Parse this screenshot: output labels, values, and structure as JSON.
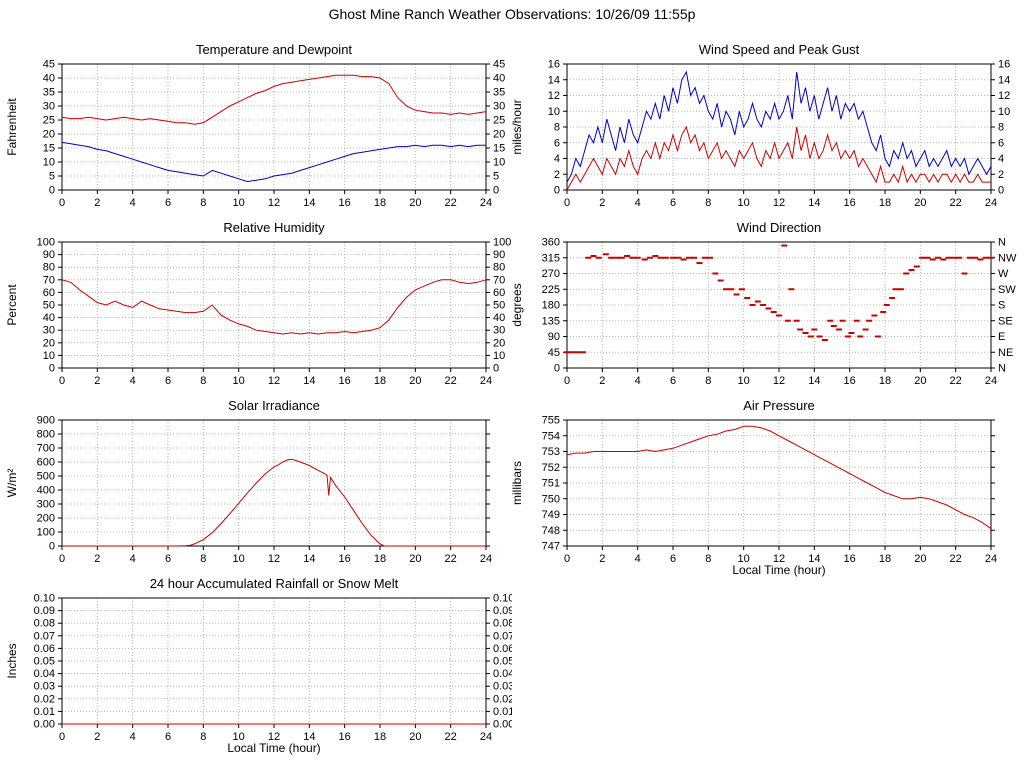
{
  "page_title": "Ghost Mine Ranch Weather Observations: 10/26/09 11:55p",
  "colors": {
    "red": "#cc0000",
    "blue": "#0000cc",
    "grid": "#b5b5b5",
    "axis": "#000000"
  },
  "x_axis_label": "Local Time (hour)",
  "chart_data": [
    {
      "id": "temperature",
      "type": "line",
      "title": "Temperature and Dewpoint",
      "ylabel": "Fahrenheit",
      "xlabel": null,
      "ymin": 0,
      "ymax": 45,
      "ystep": 5,
      "ydecimals": 0,
      "xmin": 0,
      "xmax": 24,
      "xstep": 2,
      "right_labels": "mirror",
      "series": [
        {
          "name": "Temperature",
          "color": "#cc0000",
          "xstart": 0,
          "xstep": 0.5,
          "y": [
            26,
            25.5,
            25.5,
            26,
            25.5,
            25,
            25.5,
            26,
            25.5,
            25,
            25.5,
            25,
            24.5,
            24,
            24,
            23.5,
            24,
            26,
            28,
            30,
            31.5,
            33,
            34.5,
            35.5,
            37,
            38,
            38.5,
            39,
            39.5,
            40,
            40.5,
            41,
            41,
            41,
            40.5,
            40.5,
            40,
            38,
            33,
            30,
            28.5,
            28,
            27.5,
            27.5,
            27,
            27.5,
            27,
            27.5,
            28
          ]
        },
        {
          "name": "Dewpoint",
          "color": "#0000cc",
          "xstart": 0,
          "xstep": 0.5,
          "y": [
            17,
            16.5,
            16,
            15.5,
            14.5,
            14,
            13,
            12,
            11,
            10,
            9,
            8,
            7,
            6.5,
            6,
            5.5,
            5,
            7,
            6,
            5,
            4,
            3,
            3.5,
            4,
            5,
            5.5,
            6,
            7,
            8,
            9,
            10,
            11,
            12,
            13,
            13.5,
            14,
            14.5,
            15,
            15.5,
            15.5,
            16,
            15.5,
            16,
            16,
            15.5,
            16,
            15.5,
            16,
            16
          ]
        }
      ]
    },
    {
      "id": "wind-speed",
      "type": "line",
      "title": "Wind Speed and Peak Gust",
      "ylabel": "miles/hour",
      "xlabel": null,
      "ymin": 0,
      "ymax": 16,
      "ystep": 2,
      "ydecimals": 0,
      "xmin": 0,
      "xmax": 24,
      "xstep": 2,
      "right_labels": "mirror",
      "series": [
        {
          "name": "Peak Gust",
          "color": "#0000cc",
          "xstart": 0,
          "xstep": 0.25,
          "y": [
            1,
            2,
            4,
            3,
            5,
            7,
            6,
            8,
            6,
            9,
            7,
            5,
            8,
            6,
            9,
            7,
            6,
            8,
            10,
            9,
            11,
            9,
            12,
            10,
            13,
            11,
            14,
            15,
            12,
            13,
            11,
            12,
            10,
            9,
            11,
            8,
            10,
            9,
            7,
            10,
            8,
            9,
            11,
            9,
            8,
            10,
            9,
            11,
            9,
            10,
            12,
            9,
            15,
            11,
            13,
            10,
            12,
            9,
            11,
            13,
            10,
            12,
            9,
            11,
            10,
            11,
            9,
            10,
            8,
            6,
            5,
            7,
            4,
            3,
            5,
            4,
            6,
            4,
            5,
            3,
            4,
            5,
            3,
            4,
            3,
            4,
            5,
            3,
            4,
            3,
            4,
            2,
            3,
            4,
            3,
            2,
            3
          ]
        },
        {
          "name": "Wind Speed",
          "color": "#cc0000",
          "xstart": 0,
          "xstep": 0.25,
          "y": [
            0,
            1,
            2,
            1,
            2,
            3,
            4,
            3,
            2,
            4,
            3,
            2,
            4,
            3,
            5,
            3,
            2,
            4,
            5,
            4,
            6,
            4,
            6,
            5,
            7,
            5,
            7,
            8,
            6,
            7,
            5,
            6,
            4,
            5,
            6,
            4,
            5,
            4,
            3,
            5,
            4,
            5,
            6,
            4,
            3,
            5,
            4,
            6,
            4,
            5,
            6,
            4,
            8,
            5,
            7,
            4,
            6,
            4,
            5,
            7,
            5,
            6,
            4,
            5,
            4,
            5,
            3,
            4,
            3,
            2,
            1,
            3,
            1,
            1,
            2,
            1,
            3,
            1,
            2,
            1,
            2,
            2,
            1,
            2,
            1,
            2,
            2,
            1,
            2,
            1,
            2,
            1,
            1,
            2,
            1,
            1,
            1
          ]
        }
      ]
    },
    {
      "id": "humidity",
      "type": "line",
      "title": "Relative Humidity",
      "ylabel": "Percent",
      "xlabel": null,
      "ymin": 0,
      "ymax": 100,
      "ystep": 10,
      "ydecimals": 0,
      "xmin": 0,
      "xmax": 24,
      "xstep": 2,
      "right_labels": "mirror",
      "series": [
        {
          "name": "Relative Humidity",
          "color": "#cc0000",
          "xstart": 0,
          "xstep": 0.5,
          "y": [
            70,
            68,
            62,
            57,
            52,
            50,
            53,
            50,
            48,
            53,
            50,
            47,
            46,
            45,
            44,
            44,
            45,
            50,
            42,
            38,
            35,
            33,
            30,
            29,
            28,
            27,
            28,
            27,
            28,
            27,
            28,
            28,
            29,
            28,
            29,
            30,
            32,
            38,
            48,
            56,
            62,
            65,
            68,
            70,
            70,
            68,
            67,
            68,
            70
          ]
        }
      ]
    },
    {
      "id": "wind-direction",
      "type": "scatter",
      "title": "Wind Direction",
      "ylabel": "degrees",
      "xlabel": null,
      "ymin": 0,
      "ymax": 360,
      "ystep": 45,
      "ydecimals": 0,
      "xmin": 0,
      "xmax": 24,
      "xstep": 2,
      "right_labels": [
        "N",
        "NE",
        "E",
        "SE",
        "S",
        "SW",
        "W",
        "NW",
        "N"
      ],
      "series": [
        {
          "name": "Wind Direction",
          "color": "#cc0000",
          "points": [
            [
              0,
              45
            ],
            [
              0.3,
              45
            ],
            [
              0.6,
              45
            ],
            [
              0.9,
              45
            ],
            [
              1.2,
              315
            ],
            [
              1.5,
              320
            ],
            [
              1.8,
              315
            ],
            [
              2.2,
              325
            ],
            [
              2.5,
              315
            ],
            [
              2.8,
              315
            ],
            [
              3.1,
              315
            ],
            [
              3.4,
              320
            ],
            [
              3.7,
              315
            ],
            [
              4.0,
              315
            ],
            [
              4.4,
              310
            ],
            [
              4.7,
              315
            ],
            [
              5.0,
              320
            ],
            [
              5.3,
              315
            ],
            [
              5.6,
              315
            ],
            [
              6.0,
              315
            ],
            [
              6.3,
              315
            ],
            [
              6.6,
              310
            ],
            [
              6.9,
              315
            ],
            [
              7.2,
              315
            ],
            [
              7.5,
              300
            ],
            [
              7.8,
              315
            ],
            [
              8.1,
              315
            ],
            [
              8.4,
              270
            ],
            [
              8.7,
              250
            ],
            [
              9.0,
              225
            ],
            [
              9.3,
              225
            ],
            [
              9.6,
              210
            ],
            [
              9.9,
              225
            ],
            [
              10.2,
              200
            ],
            [
              10.5,
              180
            ],
            [
              10.8,
              190
            ],
            [
              11.1,
              180
            ],
            [
              11.4,
              170
            ],
            [
              11.7,
              160
            ],
            [
              12.0,
              150
            ],
            [
              12.3,
              350
            ],
            [
              12.5,
              135
            ],
            [
              12.7,
              225
            ],
            [
              13.0,
              135
            ],
            [
              13.2,
              110
            ],
            [
              13.5,
              100
            ],
            [
              13.8,
              90
            ],
            [
              14.0,
              110
            ],
            [
              14.3,
              90
            ],
            [
              14.6,
              80
            ],
            [
              14.9,
              135
            ],
            [
              15.1,
              120
            ],
            [
              15.4,
              110
            ],
            [
              15.6,
              135
            ],
            [
              15.9,
              90
            ],
            [
              16.1,
              100
            ],
            [
              16.4,
              135
            ],
            [
              16.6,
              90
            ],
            [
              16.9,
              110
            ],
            [
              17.1,
              135
            ],
            [
              17.4,
              150
            ],
            [
              17.6,
              90
            ],
            [
              17.9,
              160
            ],
            [
              18.1,
              180
            ],
            [
              18.4,
              200
            ],
            [
              18.6,
              225
            ],
            [
              18.9,
              225
            ],
            [
              19.2,
              270
            ],
            [
              19.5,
              280
            ],
            [
              19.8,
              290
            ],
            [
              20.1,
              315
            ],
            [
              20.4,
              315
            ],
            [
              20.7,
              310
            ],
            [
              21.0,
              315
            ],
            [
              21.3,
              310
            ],
            [
              21.6,
              315
            ],
            [
              21.9,
              315
            ],
            [
              22.2,
              315
            ],
            [
              22.5,
              270
            ],
            [
              22.8,
              315
            ],
            [
              23.1,
              315
            ],
            [
              23.4,
              310
            ],
            [
              23.7,
              315
            ],
            [
              24,
              315
            ]
          ]
        }
      ]
    },
    {
      "id": "solar",
      "type": "line",
      "title": "Solar Irradiance",
      "ylabel": "W/m²",
      "xlabel": null,
      "ymin": 0,
      "ymax": 900,
      "ystep": 100,
      "ydecimals": 0,
      "xmin": 0,
      "xmax": 24,
      "xstep": 2,
      "right_labels": null,
      "series": [
        {
          "name": "Solar Irradiance",
          "color": "#cc0000",
          "x": [
            0,
            1,
            2,
            3,
            4,
            5,
            6,
            6.5,
            7,
            7.25,
            7.5,
            8,
            8.5,
            9,
            9.5,
            10,
            10.5,
            11,
            11.5,
            12,
            12.25,
            12.5,
            12.75,
            13,
            13.25,
            13.5,
            14,
            14.5,
            14.9,
            15.0,
            15.1,
            15.2,
            15.3,
            15.5,
            16,
            16.5,
            17,
            17.5,
            18,
            18.25,
            19,
            20,
            21,
            22,
            23,
            24
          ],
          "y": [
            0,
            0,
            0,
            0,
            0,
            0,
            0,
            0,
            2,
            5,
            15,
            45,
            95,
            160,
            230,
            305,
            380,
            450,
            515,
            565,
            580,
            600,
            615,
            620,
            610,
            600,
            575,
            540,
            515,
            505,
            360,
            490,
            470,
            430,
            350,
            255,
            160,
            75,
            15,
            0,
            0,
            0,
            0,
            0,
            0,
            0
          ]
        }
      ]
    },
    {
      "id": "pressure",
      "type": "line",
      "title": "Air Pressure",
      "ylabel": "millibars",
      "xlabel": "Local Time (hour)",
      "ymin": 747,
      "ymax": 755,
      "ystep": 1,
      "ydecimals": 0,
      "xmin": 0,
      "xmax": 24,
      "xstep": 2,
      "right_labels": null,
      "series": [
        {
          "name": "Air Pressure",
          "color": "#cc0000",
          "xstart": 0,
          "xstep": 0.5,
          "y": [
            752.8,
            752.9,
            752.9,
            753.0,
            753.0,
            753.0,
            753.0,
            753.0,
            753.0,
            753.1,
            753.0,
            753.1,
            753.2,
            753.4,
            753.6,
            753.8,
            754.0,
            754.1,
            754.3,
            754.4,
            754.6,
            754.6,
            754.5,
            754.3,
            754.0,
            753.7,
            753.4,
            753.1,
            752.8,
            752.5,
            752.2,
            751.9,
            751.6,
            751.3,
            751.0,
            750.7,
            750.4,
            750.2,
            750.0,
            750.0,
            750.1,
            750.0,
            749.8,
            749.6,
            749.3,
            749.0,
            748.8,
            748.5,
            748.1
          ]
        }
      ]
    },
    {
      "id": "rainfall",
      "type": "line",
      "title": "24 hour Accumulated Rainfall or Snow Melt",
      "ylabel": "Inches",
      "xlabel": "Local Time (hour)",
      "ymin": 0,
      "ymax": 0.1,
      "ystep": 0.01,
      "ydecimals": 2,
      "xmin": 0,
      "xmax": 24,
      "xstep": 2,
      "right_labels": "mirror",
      "series": [
        {
          "name": "Rainfall",
          "color": "#cc0000",
          "xstart": 0,
          "xstep": 24,
          "y": [
            0,
            0
          ]
        }
      ]
    }
  ]
}
